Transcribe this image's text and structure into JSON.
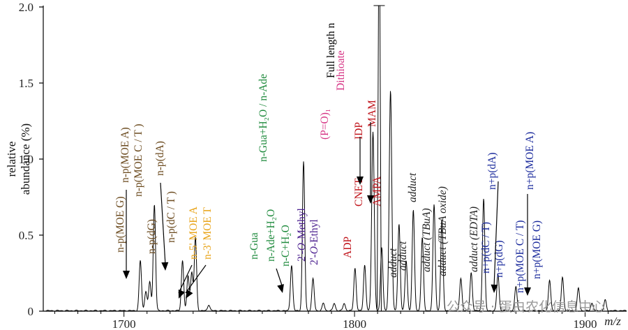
{
  "chart_data": {
    "type": "line",
    "title": "",
    "xlabel": "m/z",
    "ylabel_lines": [
      "relative",
      "abundance (%)"
    ],
    "xlim": [
      1665,
      1918
    ],
    "ylim": [
      0,
      2.0
    ],
    "x_ticks": [
      1700,
      1800,
      1900
    ],
    "y_ticks": [
      0,
      0.5,
      1.0,
      1.5,
      2.0
    ],
    "y_tick_labels": [
      "0",
      "0.5",
      "1.0",
      "1.5",
      "2.0"
    ],
    "peaks": [
      {
        "x": 1707.1,
        "y": 0.33
      },
      {
        "x": 1709.5,
        "y": 0.13
      },
      {
        "x": 1711.2,
        "y": 0.19
      },
      {
        "x": 1713.2,
        "y": 0.7
      },
      {
        "x": 1725.4,
        "y": 0.33
      },
      {
        "x": 1727.8,
        "y": 0.23
      },
      {
        "x": 1729.4,
        "y": 0.25
      },
      {
        "x": 1731.0,
        "y": 0.48
      },
      {
        "x": 1736.8,
        "y": 0.04
      },
      {
        "x": 1772.7,
        "y": 0.3
      },
      {
        "x": 1777.9,
        "y": 0.98
      },
      {
        "x": 1782.0,
        "y": 0.21
      },
      {
        "x": 1786.5,
        "y": 0.05
      },
      {
        "x": 1791.2,
        "y": 0.05
      },
      {
        "x": 1795.5,
        "y": 0.05
      },
      {
        "x": 1800.2,
        "y": 0.28
      },
      {
        "x": 1804.4,
        "y": 0.3
      },
      {
        "x": 1808.0,
        "y": 1.18
      },
      {
        "x": 1811.8,
        "y": 0.42
      },
      {
        "x": 1815.6,
        "y": 1.45
      },
      {
        "x": 1819.3,
        "y": 0.57
      },
      {
        "x": 1822.4,
        "y": 0.33
      },
      {
        "x": 1825.5,
        "y": 0.66
      },
      {
        "x": 1829.4,
        "y": 0.48
      },
      {
        "x": 1834.5,
        "y": 0.7
      },
      {
        "x": 1837.9,
        "y": 0.6
      },
      {
        "x": 1846.1,
        "y": 0.21
      },
      {
        "x": 1850.6,
        "y": 0.25
      },
      {
        "x": 1856.0,
        "y": 0.74
      },
      {
        "x": 1862.2,
        "y": 0.24
      },
      {
        "x": 1870.0,
        "y": 0.16
      },
      {
        "x": 1884.6,
        "y": 0.2
      },
      {
        "x": 1890.2,
        "y": 0.22
      },
      {
        "x": 1897.1,
        "y": 0.15
      },
      {
        "x": 1903.0,
        "y": 0.05
      },
      {
        "x": 1908.7,
        "y": 0.07
      }
    ],
    "annotations": [
      {
        "text": "n-p(MOE G)",
        "color": "#6b4a1e",
        "rotate": true
      },
      {
        "text": "n-p(MOE A)",
        "color": "#6b4a1e",
        "rotate": true
      },
      {
        "text": "n-p(MOE C / T )",
        "color": "#6b4a1e",
        "rotate": true
      },
      {
        "text": "n-p(dG)",
        "color": "#6b4a1e",
        "rotate": true
      },
      {
        "text": "n-p(dA)",
        "color": "#6b4a1e",
        "rotate": true
      },
      {
        "text": "n-p(dC / T )",
        "color": "#6b4a1e",
        "rotate": true
      },
      {
        "text": "n-5' MOE A",
        "color": "#e8a317",
        "rotate": true
      },
      {
        "text": "n-3' MOE T",
        "color": "#e8a317",
        "rotate": true
      },
      {
        "text": "n-Gua",
        "color": "#1e8a3c",
        "rotate": true
      },
      {
        "text": "n-Gua+H₂O / n-Ade",
        "color": "#1e8a3c",
        "rotate": true
      },
      {
        "text": "n-Ade+H₂O",
        "color": "#1e8a3c",
        "rotate": true
      },
      {
        "text": "n-C+H₂O",
        "color": "#1e8a3c",
        "rotate": true
      },
      {
        "text": "2'-O-Methyl",
        "color": "#4b1f8f",
        "rotate": true,
        "italic_part": true
      },
      {
        "text": "2'-O-Ethyl",
        "color": "#4b1f8f",
        "rotate": true,
        "italic_part": true
      },
      {
        "text": "(P=O)₁",
        "color": "#d63384",
        "rotate": true
      },
      {
        "text": "Full length n",
        "color": "#000000",
        "rotate": true
      },
      {
        "text": "Dithioate",
        "color": "#d63384",
        "rotate": true
      },
      {
        "text": "ADP",
        "color": "#c0141b",
        "rotate": true
      },
      {
        "text": "CNET",
        "color": "#c0141b",
        "rotate": true
      },
      {
        "text": "IDP",
        "color": "#c0141b",
        "rotate": true
      },
      {
        "text": "MAM",
        "color": "#c0141b",
        "rotate": true
      },
      {
        "text": "AMPA",
        "color": "#c0141b",
        "rotate": true
      },
      {
        "text": "adduct",
        "color": "#222222",
        "rotate": true,
        "italic": true
      },
      {
        "text": "adduct",
        "color": "#222222",
        "rotate": true,
        "italic": true
      },
      {
        "text": "adduct",
        "color": "#222222",
        "rotate": true,
        "italic": true
      },
      {
        "text": "adduct (TBuA)",
        "color": "#222222",
        "rotate": true,
        "italic": true
      },
      {
        "text": "adduct (TBuA oxide)",
        "color": "#222222",
        "rotate": true,
        "italic": true
      },
      {
        "text": "adduct (EDTA)",
        "color": "#222222",
        "rotate": true,
        "italic": true
      },
      {
        "text": "n+p(dC / T)",
        "color": "#1a2a9c",
        "rotate": true
      },
      {
        "text": "n+p(dA)",
        "color": "#1a2a9c",
        "rotate": true
      },
      {
        "text": "n+p(dG)",
        "color": "#1a2a9c",
        "rotate": true
      },
      {
        "text": "n+p(MOE C / T)",
        "color": "#1a2a9c",
        "rotate": true
      },
      {
        "text": "n+p(MOE A)",
        "color": "#1a2a9c",
        "rotate": true
      },
      {
        "text": "n+p(MOE G)",
        "color": "#1a2a9c",
        "rotate": true
      }
    ]
  },
  "watermark": "公众号 · 蛋白农化信息中心"
}
